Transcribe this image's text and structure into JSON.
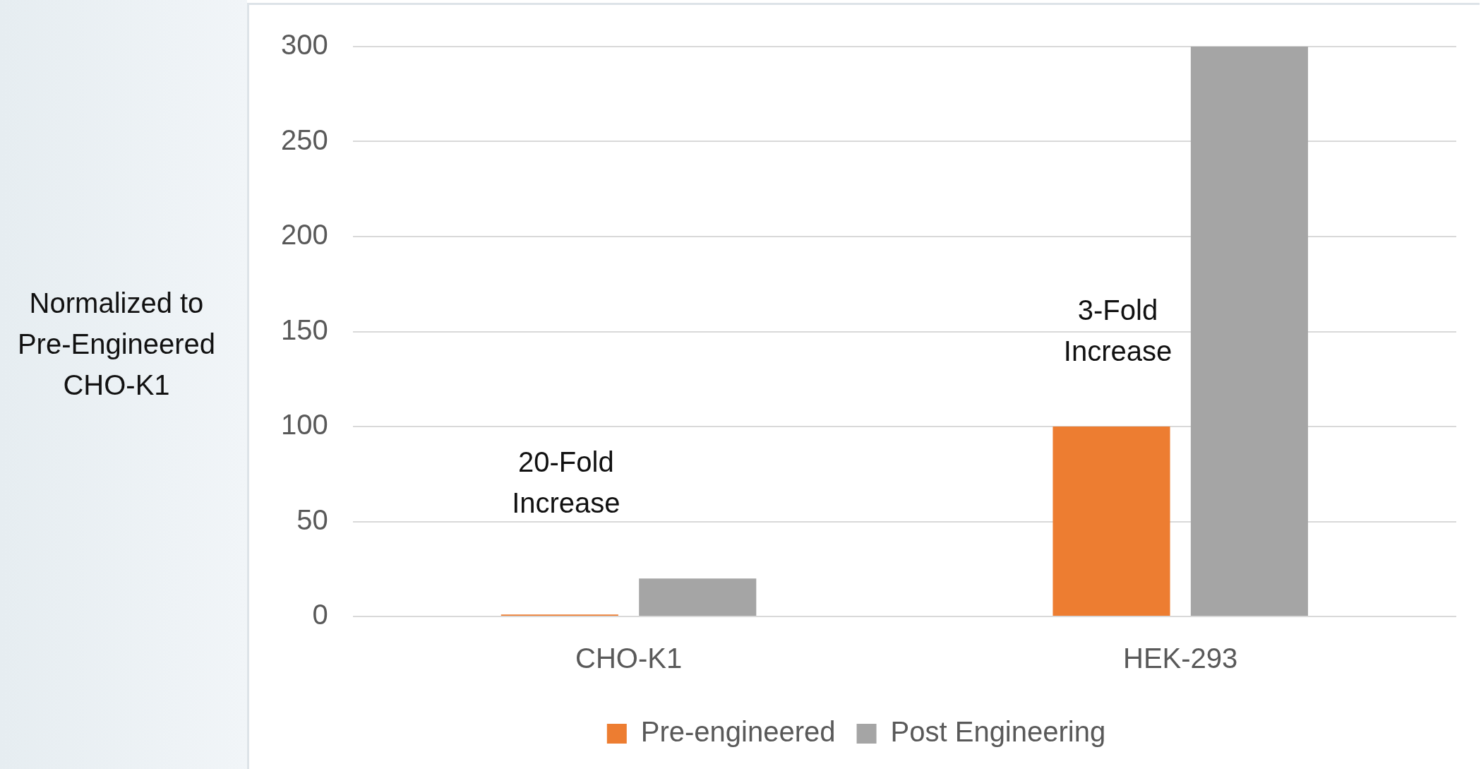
{
  "chart_data": {
    "type": "bar",
    "ylabel": "Normalized to Pre-Engineered CHO-K1",
    "categories": [
      "CHO-K1",
      "HEK-293"
    ],
    "series": [
      {
        "name": "Pre-engineered",
        "color": "#ed7d31",
        "values": [
          1,
          100
        ]
      },
      {
        "name": "Post Engineering",
        "color": "#a5a5a5",
        "values": [
          20,
          300
        ]
      }
    ],
    "ylim": [
      0,
      300
    ],
    "yticks": [
      0,
      50,
      100,
      150,
      200,
      250,
      300
    ],
    "grid": "y",
    "legend": "bottom",
    "annotations": [
      "20-Fold Increase",
      "3-Fold Increase"
    ]
  }
}
